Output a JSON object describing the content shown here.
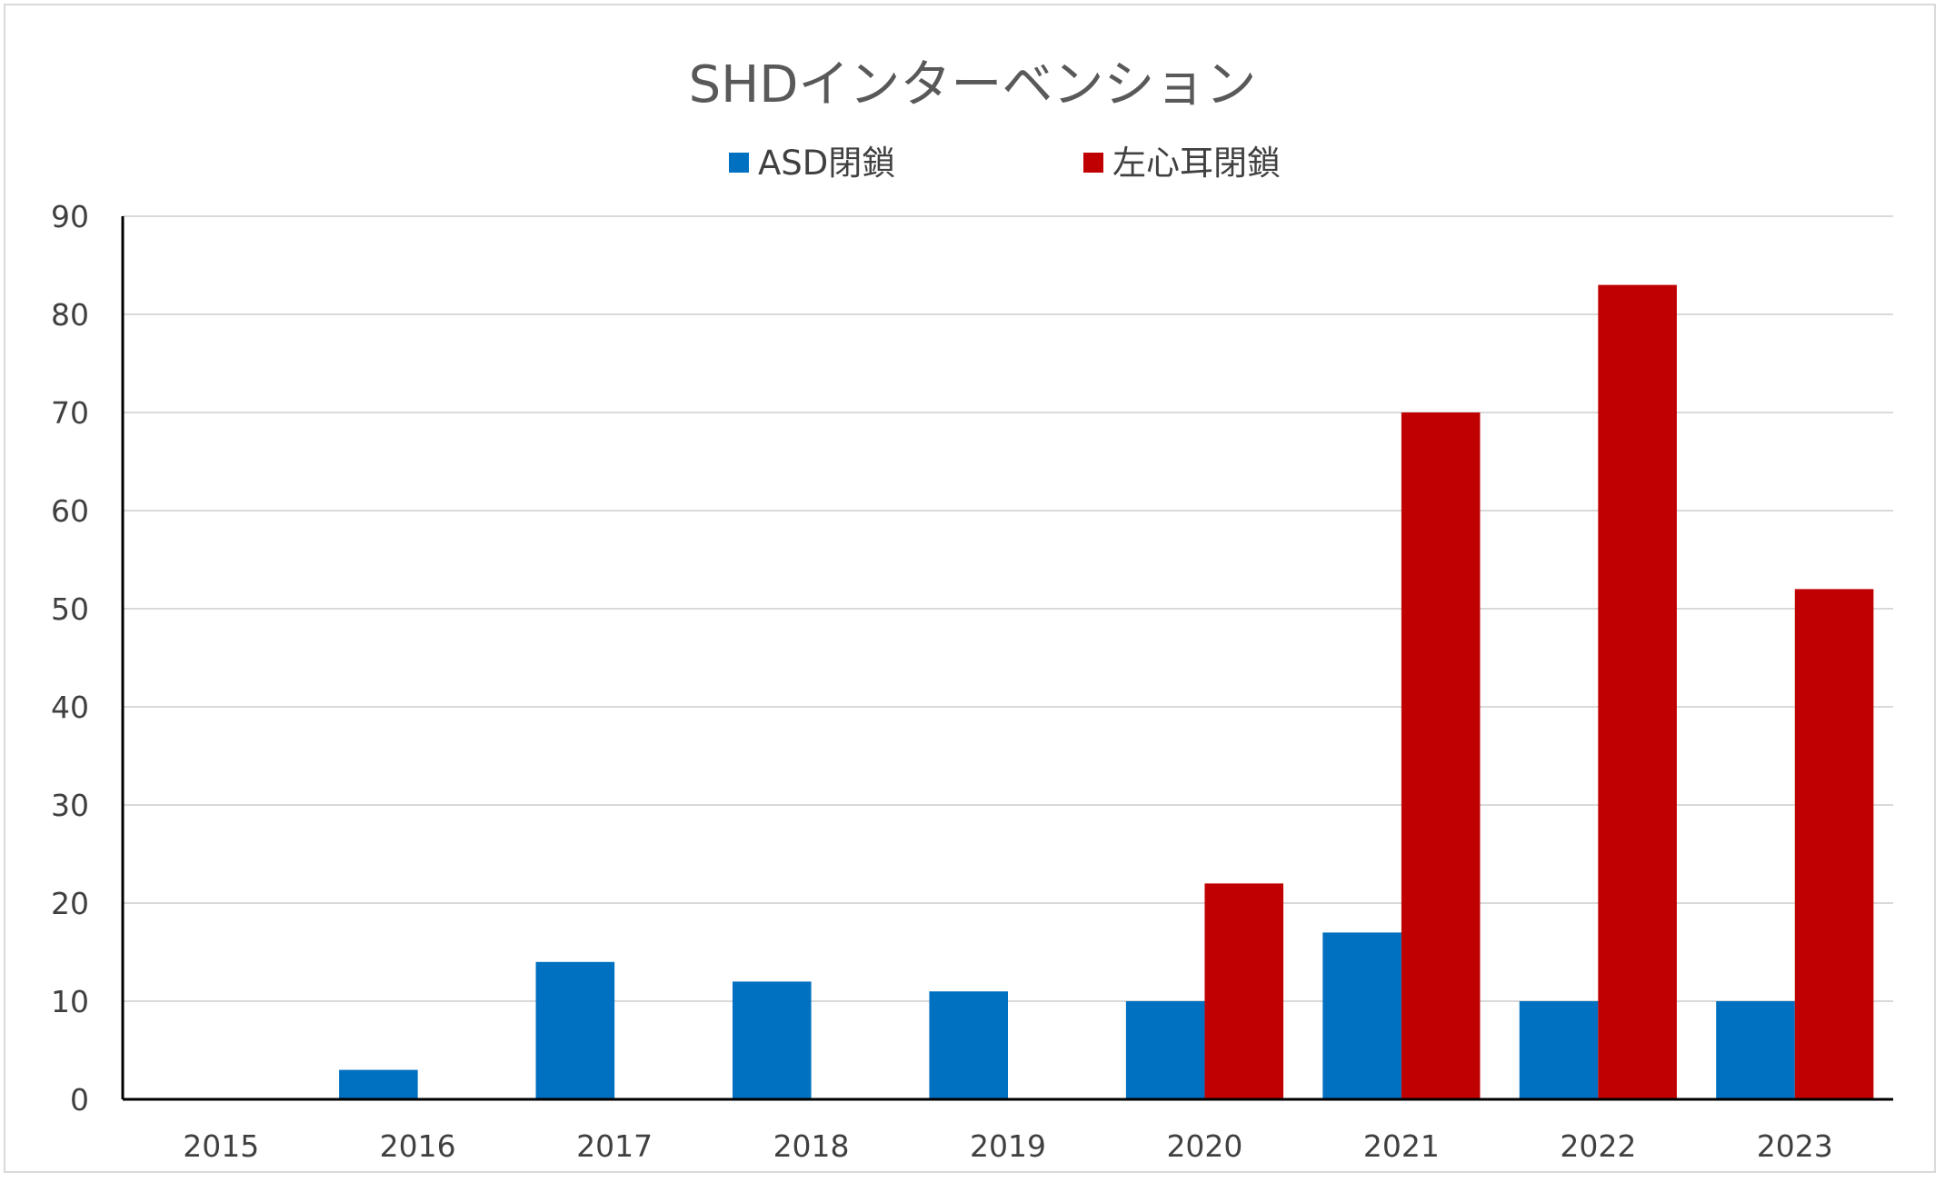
{
  "chart_data": {
    "type": "bar",
    "title": "SHDインターベンション",
    "xlabel": "",
    "ylabel": "",
    "categories": [
      "2015",
      "2016",
      "2017",
      "2018",
      "2019",
      "2020",
      "2021",
      "2022",
      "2023"
    ],
    "series": [
      {
        "name": "ASD閉鎖",
        "color": "#0070c0",
        "values": [
          0,
          3,
          14,
          12,
          11,
          10,
          17,
          10,
          10
        ]
      },
      {
        "name": "左心耳閉鎖",
        "color": "#c00000",
        "values": [
          0,
          0,
          0,
          0,
          0,
          22,
          70,
          83,
          52
        ]
      }
    ],
    "ylim": [
      0,
      90
    ],
    "yticks": [
      0,
      10,
      20,
      30,
      40,
      50,
      60,
      70,
      80,
      90
    ],
    "grid": true,
    "legend_position": "top"
  }
}
